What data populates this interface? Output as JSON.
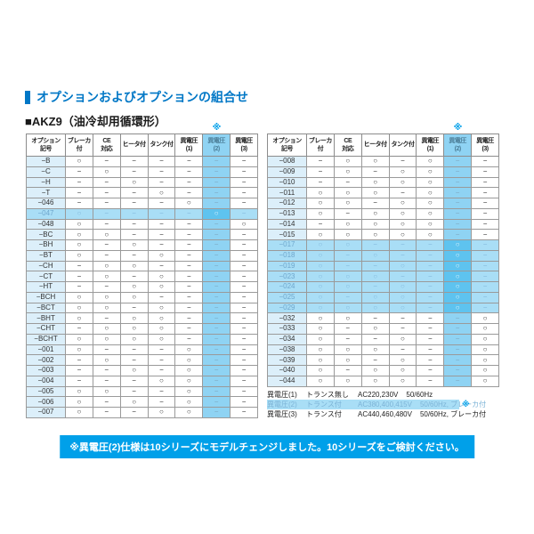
{
  "page": {
    "title": "オプションおよびオプションの組合せ",
    "subtitle": "■AKZ9（油冷却用循環形）",
    "note_mark": "※",
    "footer_note": "※異電圧(2)仕様は10シリーズにモデルチェンジしました。10シリーズをご検討ください。"
  },
  "colors": {
    "accent_blue": "#0077c6",
    "banner_bg": "#00a0e9",
    "col_hl": "#8fd3f3",
    "row_hl": "#a9def6",
    "both_hl": "#5ec3ef",
    "code_bg": "#dceffa"
  },
  "symbols": {
    "o": "○",
    "-": "−"
  },
  "table_headers": [
    "オプション\n記号",
    "ブレーカ付",
    "CE\n対応",
    "ヒータ付",
    "タンク付",
    "異電圧\n(1)",
    "異電圧\n(2)",
    "異電圧\n(3)"
  ],
  "left_table_rows": [
    {
      "code": "−B",
      "cells": [
        "o",
        "-",
        "-",
        "-",
        "-",
        "-",
        "-"
      ],
      "highlighted": false
    },
    {
      "code": "−C",
      "cells": [
        "-",
        "o",
        "-",
        "-",
        "-",
        "-",
        "-"
      ],
      "highlighted": false
    },
    {
      "code": "−H",
      "cells": [
        "-",
        "-",
        "o",
        "-",
        "-",
        "-",
        "-"
      ],
      "highlighted": false
    },
    {
      "code": "−T",
      "cells": [
        "-",
        "-",
        "-",
        "o",
        "-",
        "-",
        "-"
      ],
      "highlighted": false
    },
    {
      "code": "−046",
      "cells": [
        "-",
        "-",
        "-",
        "-",
        "o",
        "-",
        "-"
      ],
      "highlighted": false
    },
    {
      "code": "−047",
      "cells": [
        "o",
        "-",
        "-",
        "-",
        "-",
        "o",
        "-"
      ],
      "highlighted": true
    },
    {
      "code": "−048",
      "cells": [
        "o",
        "-",
        "-",
        "-",
        "-",
        "-",
        "o"
      ],
      "highlighted": false
    },
    {
      "code": "−BC",
      "cells": [
        "o",
        "o",
        "-",
        "-",
        "-",
        "-",
        "-"
      ],
      "highlighted": false
    },
    {
      "code": "−BH",
      "cells": [
        "o",
        "-",
        "o",
        "-",
        "-",
        "-",
        "-"
      ],
      "highlighted": false
    },
    {
      "code": "−BT",
      "cells": [
        "o",
        "-",
        "-",
        "o",
        "-",
        "-",
        "-"
      ],
      "highlighted": false
    },
    {
      "code": "−CH",
      "cells": [
        "-",
        "o",
        "o",
        "-",
        "-",
        "-",
        "-"
      ],
      "highlighted": false
    },
    {
      "code": "−CT",
      "cells": [
        "-",
        "o",
        "-",
        "o",
        "-",
        "-",
        "-"
      ],
      "highlighted": false
    },
    {
      "code": "−HT",
      "cells": [
        "-",
        "-",
        "o",
        "o",
        "-",
        "-",
        "-"
      ],
      "highlighted": false
    },
    {
      "code": "−BCH",
      "cells": [
        "o",
        "o",
        "o",
        "-",
        "-",
        "-",
        "-"
      ],
      "highlighted": false
    },
    {
      "code": "−BCT",
      "cells": [
        "o",
        "o",
        "-",
        "o",
        "-",
        "-",
        "-"
      ],
      "highlighted": false
    },
    {
      "code": "−BHT",
      "cells": [
        "o",
        "-",
        "o",
        "o",
        "-",
        "-",
        "-"
      ],
      "highlighted": false
    },
    {
      "code": "−CHT",
      "cells": [
        "-",
        "o",
        "o",
        "o",
        "-",
        "-",
        "-"
      ],
      "highlighted": false
    },
    {
      "code": "−BCHT",
      "cells": [
        "o",
        "o",
        "o",
        "o",
        "-",
        "-",
        "-"
      ],
      "highlighted": false
    },
    {
      "code": "−001",
      "cells": [
        "o",
        "-",
        "-",
        "-",
        "o",
        "-",
        "-"
      ],
      "highlighted": false
    },
    {
      "code": "−002",
      "cells": [
        "-",
        "o",
        "-",
        "-",
        "o",
        "-",
        "-"
      ],
      "highlighted": false
    },
    {
      "code": "−003",
      "cells": [
        "-",
        "-",
        "o",
        "-",
        "o",
        "-",
        "-"
      ],
      "highlighted": false
    },
    {
      "code": "−004",
      "cells": [
        "-",
        "-",
        "-",
        "o",
        "o",
        "-",
        "-"
      ],
      "highlighted": false
    },
    {
      "code": "−005",
      "cells": [
        "o",
        "o",
        "-",
        "-",
        "o",
        "-",
        "-"
      ],
      "highlighted": false
    },
    {
      "code": "−006",
      "cells": [
        "o",
        "-",
        "o",
        "-",
        "o",
        "-",
        "-"
      ],
      "highlighted": false
    },
    {
      "code": "−007",
      "cells": [
        "o",
        "-",
        "-",
        "o",
        "o",
        "-",
        "-"
      ],
      "highlighted": false
    }
  ],
  "right_table_rows": [
    {
      "code": "−008",
      "cells": [
        "-",
        "o",
        "o",
        "-",
        "o",
        "-",
        "-"
      ],
      "highlighted": false
    },
    {
      "code": "−009",
      "cells": [
        "-",
        "o",
        "-",
        "o",
        "o",
        "-",
        "-"
      ],
      "highlighted": false
    },
    {
      "code": "−010",
      "cells": [
        "-",
        "-",
        "o",
        "o",
        "o",
        "-",
        "-"
      ],
      "highlighted": false
    },
    {
      "code": "−011",
      "cells": [
        "o",
        "o",
        "o",
        "-",
        "o",
        "-",
        "-"
      ],
      "highlighted": false
    },
    {
      "code": "−012",
      "cells": [
        "o",
        "o",
        "-",
        "o",
        "o",
        "-",
        "-"
      ],
      "highlighted": false
    },
    {
      "code": "−013",
      "cells": [
        "o",
        "-",
        "o",
        "o",
        "o",
        "-",
        "-"
      ],
      "highlighted": false
    },
    {
      "code": "−014",
      "cells": [
        "-",
        "o",
        "o",
        "o",
        "o",
        "-",
        "-"
      ],
      "highlighted": false
    },
    {
      "code": "−015",
      "cells": [
        "o",
        "o",
        "o",
        "o",
        "o",
        "-",
        "-"
      ],
      "highlighted": false
    },
    {
      "code": "−017",
      "cells": [
        "o",
        "o",
        "-",
        "-",
        "-",
        "o",
        "-"
      ],
      "highlighted": true
    },
    {
      "code": "−018",
      "cells": [
        "o",
        "-",
        "o",
        "-",
        "-",
        "o",
        "-"
      ],
      "highlighted": true
    },
    {
      "code": "−019",
      "cells": [
        "o",
        "-",
        "-",
        "o",
        "-",
        "o",
        "-"
      ],
      "highlighted": true
    },
    {
      "code": "−023",
      "cells": [
        "o",
        "o",
        "o",
        "-",
        "-",
        "o",
        "-"
      ],
      "highlighted": true
    },
    {
      "code": "−024",
      "cells": [
        "o",
        "o",
        "-",
        "o",
        "-",
        "o",
        "-"
      ],
      "highlighted": true
    },
    {
      "code": "−025",
      "cells": [
        "o",
        "-",
        "o",
        "o",
        "-",
        "o",
        "-"
      ],
      "highlighted": true
    },
    {
      "code": "−029",
      "cells": [
        "o",
        "o",
        "o",
        "o",
        "-",
        "o",
        "-"
      ],
      "highlighted": true
    },
    {
      "code": "−032",
      "cells": [
        "o",
        "o",
        "-",
        "-",
        "-",
        "-",
        "o"
      ],
      "highlighted": false
    },
    {
      "code": "−033",
      "cells": [
        "o",
        "-",
        "o",
        "-",
        "-",
        "-",
        "o"
      ],
      "highlighted": false
    },
    {
      "code": "−034",
      "cells": [
        "o",
        "-",
        "-",
        "o",
        "-",
        "-",
        "o"
      ],
      "highlighted": false
    },
    {
      "code": "−038",
      "cells": [
        "o",
        "o",
        "o",
        "-",
        "-",
        "-",
        "o"
      ],
      "highlighted": false
    },
    {
      "code": "−039",
      "cells": [
        "o",
        "o",
        "-",
        "o",
        "-",
        "-",
        "o"
      ],
      "highlighted": false
    },
    {
      "code": "−040",
      "cells": [
        "o",
        "-",
        "o",
        "o",
        "-",
        "-",
        "o"
      ],
      "highlighted": false
    },
    {
      "code": "−044",
      "cells": [
        "o",
        "o",
        "o",
        "o",
        "-",
        "-",
        "o"
      ],
      "highlighted": false
    }
  ],
  "legend": {
    "rows": [
      {
        "label": "異電圧(1)",
        "transformer": "トランス無し",
        "voltage": "AC220,230V",
        "detail": "50/60Hz",
        "highlighted": false,
        "mark": ""
      },
      {
        "label": "異電圧(2)",
        "transformer": "トランス付",
        "voltage": "AC380,400,415V",
        "detail": "50/60Hz, ブレーカ付",
        "highlighted": true,
        "mark": "※"
      },
      {
        "label": "異電圧(3)",
        "transformer": "トランス付",
        "voltage": "AC440,460,480V",
        "detail": "50/60Hz, ブレーカ付",
        "highlighted": false,
        "mark": ""
      }
    ]
  }
}
